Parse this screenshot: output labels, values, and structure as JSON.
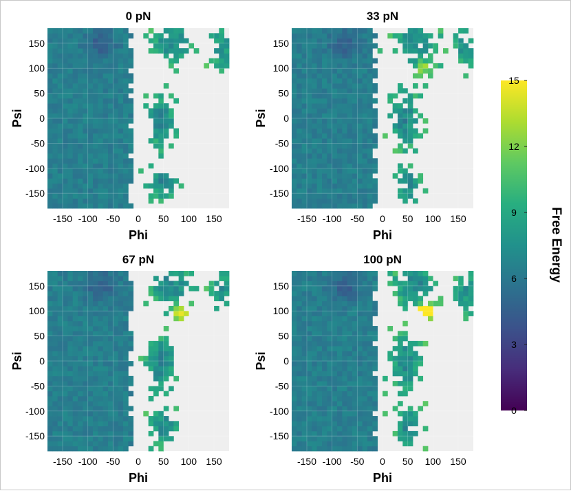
{
  "colorbar": {
    "label": "Free Energy",
    "ticks": [
      "0",
      "3",
      "6",
      "9",
      "12",
      "15"
    ],
    "range": [
      0,
      15
    ],
    "colormap": "viridis"
  },
  "chart_data": [
    {
      "type": "heatmap",
      "title": "0 pN",
      "xlabel": "Phi",
      "ylabel": "Psi",
      "xticks": [
        "-150",
        "-100",
        "-50",
        "0",
        "50",
        "100",
        "150"
      ],
      "yticks": [
        "150",
        "100",
        "50",
        "0",
        "-50",
        "-100",
        "-150"
      ],
      "xlim": [
        -180,
        180
      ],
      "ylim": [
        -180,
        180
      ],
      "bin_size_deg": 10,
      "value_range": [
        0,
        15
      ],
      "empty_color": "#efefef",
      "grid": true
    },
    {
      "type": "heatmap",
      "title": "33 pN",
      "xlabel": "Phi",
      "ylabel": "Psi",
      "xticks": [
        "-150",
        "-100",
        "-50",
        "0",
        "50",
        "100",
        "150"
      ],
      "yticks": [
        "150",
        "100",
        "50",
        "0",
        "-50",
        "-100",
        "-150"
      ],
      "xlim": [
        -180,
        180
      ],
      "ylim": [
        -180,
        180
      ],
      "bin_size_deg": 10,
      "value_range": [
        0,
        15
      ],
      "empty_color": "#efefef",
      "grid": true
    },
    {
      "type": "heatmap",
      "title": "67 pN",
      "xlabel": "Phi",
      "ylabel": "Psi",
      "xticks": [
        "-150",
        "-100",
        "-50",
        "0",
        "50",
        "100",
        "150"
      ],
      "yticks": [
        "150",
        "100",
        "50",
        "0",
        "-50",
        "-100",
        "-150"
      ],
      "xlim": [
        -180,
        180
      ],
      "ylim": [
        -180,
        180
      ],
      "bin_size_deg": 10,
      "value_range": [
        0,
        15
      ],
      "empty_color": "#efefef",
      "grid": true
    },
    {
      "type": "heatmap",
      "title": "100 pN",
      "xlabel": "Phi",
      "ylabel": "Psi",
      "xticks": [
        "-150",
        "-100",
        "-50",
        "0",
        "50",
        "100",
        "150"
      ],
      "yticks": [
        "150",
        "100",
        "50",
        "0",
        "-50",
        "-100",
        "-150"
      ],
      "xlim": [
        -180,
        180
      ],
      "ylim": [
        -180,
        180
      ],
      "bin_size_deg": 10,
      "value_range": [
        0,
        15
      ],
      "empty_color": "#efefef",
      "grid": true
    }
  ]
}
